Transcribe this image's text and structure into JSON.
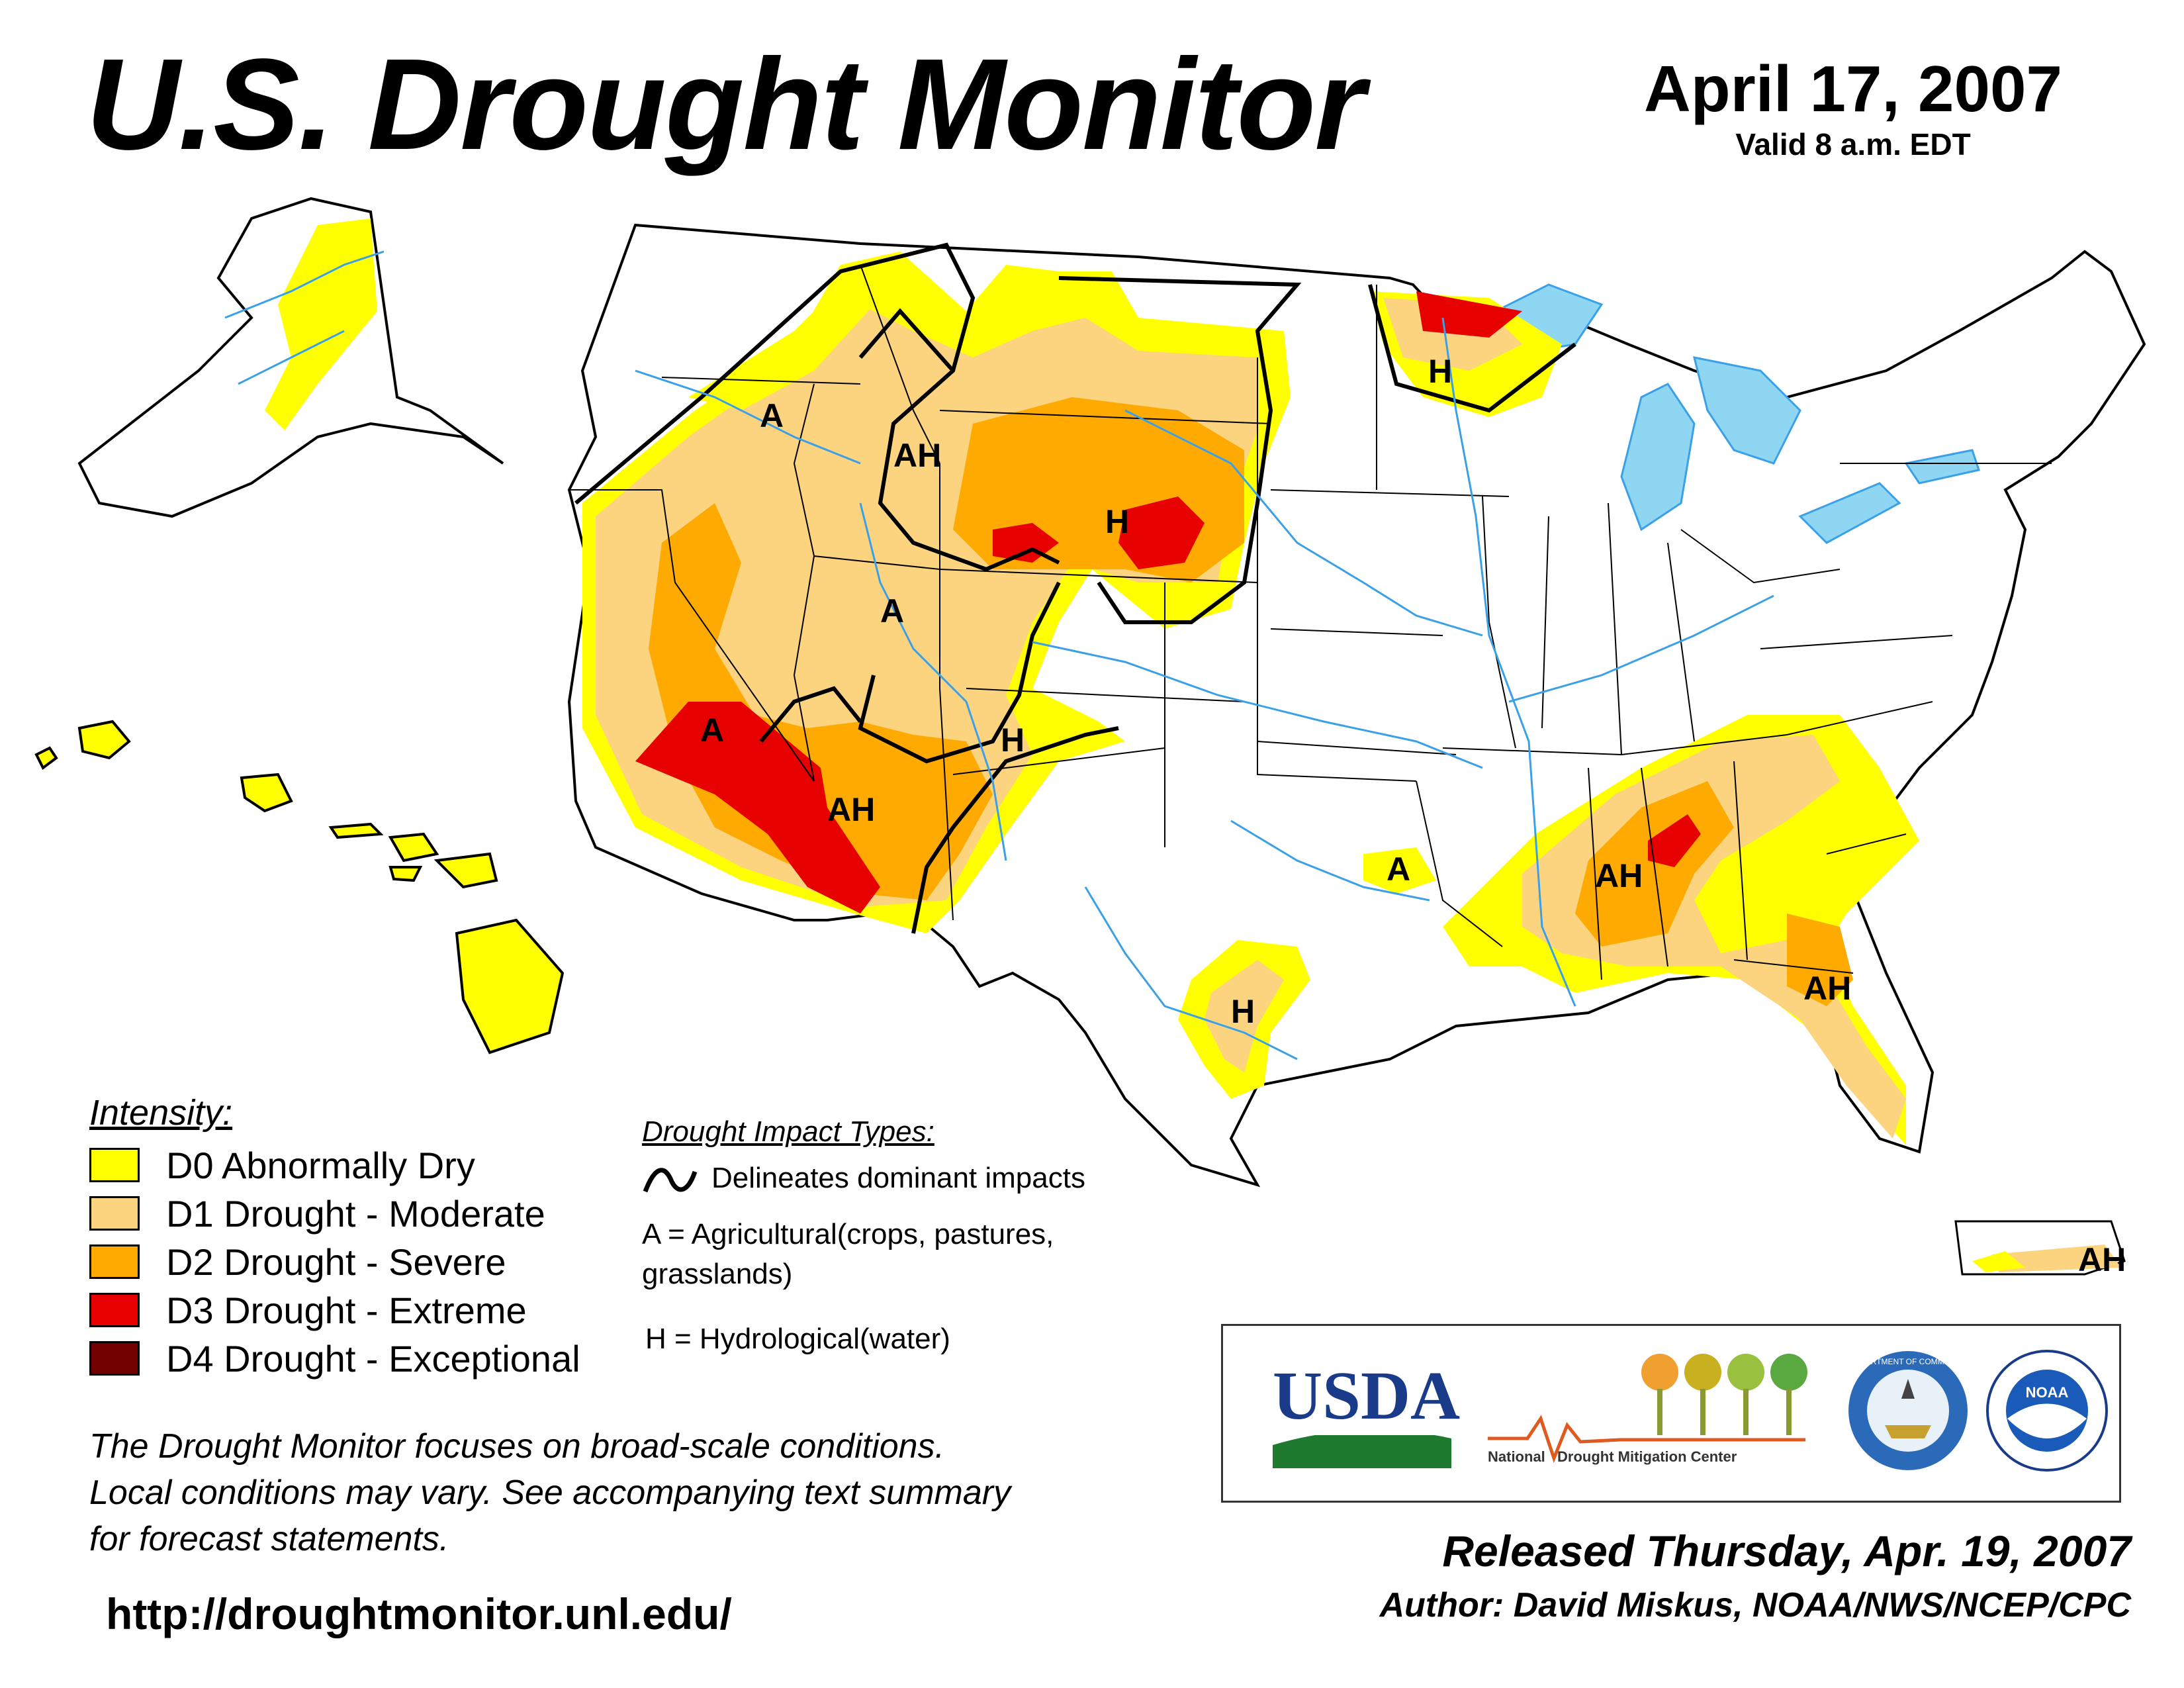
{
  "header": {
    "title": "U.S. Drought Monitor",
    "date": "April 17, 2007",
    "valid": "Valid 8 a.m. EDT"
  },
  "colors": {
    "d0": "#ffff00",
    "d1": "#fcd37f",
    "d2": "#ffaa00",
    "d3": "#e60000",
    "d4": "#730000",
    "water": "#6ecff6",
    "rivers": "#3aa0e8"
  },
  "legend": {
    "heading": "Intensity:",
    "items": [
      {
        "code": "D0",
        "label": "D0 Abnormally Dry",
        "color": "#ffff00"
      },
      {
        "code": "D1",
        "label": "D1 Drought - Moderate",
        "color": "#fcd37f"
      },
      {
        "code": "D2",
        "label": "D2 Drought - Severe",
        "color": "#ffaa00"
      },
      {
        "code": "D3",
        "label": "D3 Drought - Extreme",
        "color": "#e60000"
      },
      {
        "code": "D4",
        "label": "D4 Drought - Exceptional",
        "color": "#730000"
      }
    ]
  },
  "impacts": {
    "heading": "Drought Impact Types:",
    "line_label": "Delineates dominant impacts",
    "a_label_1": "A = Agricultural(crops, pastures,",
    "a_label_2": "grasslands)",
    "h_label": "H = Hydrological(water)"
  },
  "map_labels": {
    "pnw": "A",
    "idaho": "AH",
    "wyoming": "H",
    "utah": "A",
    "socal": "A",
    "arizona": "AH",
    "colorado": "H",
    "minnesota": "H",
    "arkansas": "A",
    "texas": "H",
    "alabama": "AH",
    "georgia": "AH",
    "puerto_rico": "AH"
  },
  "disclaimer": [
    "The Drought Monitor focuses on broad-scale conditions.",
    "Local conditions may vary. See accompanying text summary",
    "for forecast statements."
  ],
  "url": "http://droughtmonitor.unl.edu/",
  "logos": {
    "usda": "USDA",
    "ndmc_1": "National",
    "ndmc_2": "Drought Mitigation Center",
    "commerce": "DEPARTMENT OF COMMERCE",
    "noaa": "NOAA"
  },
  "footer": {
    "released": "Released Thursday, Apr. 19, 2007",
    "author": "Author: David Miskus, NOAA/NWS/NCEP/CPC"
  }
}
